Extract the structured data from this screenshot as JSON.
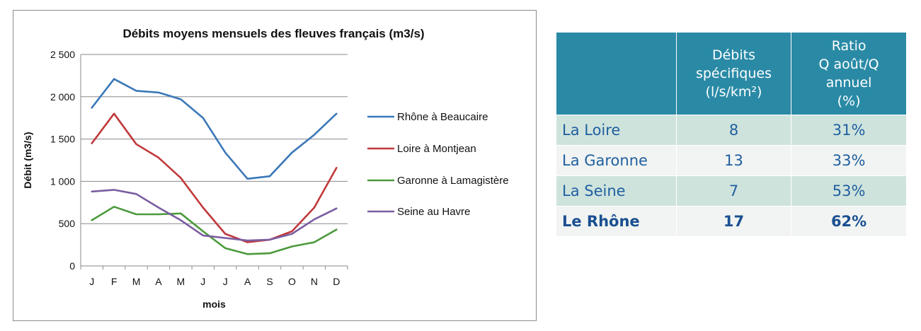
{
  "chart_data": {
    "type": "line",
    "title": "Débits moyens mensuels des fleuves français (m3/s)",
    "xlabel": "mois",
    "ylabel": "Débit (m3/s)",
    "categories": [
      "J",
      "F",
      "M",
      "A",
      "M",
      "J",
      "J",
      "A",
      "S",
      "O",
      "N",
      "D"
    ],
    "ylim": [
      0,
      2500
    ],
    "yticks": [
      0,
      500,
      1000,
      1500,
      2000,
      2500
    ],
    "ytick_labels": [
      "0",
      "500",
      "1 000",
      "1 500",
      "2 000",
      "2 500"
    ],
    "grid": true,
    "legend": "right",
    "series": [
      {
        "name": "Rhône à Beaucaire",
        "color": "#3a78b8",
        "values": [
          1870,
          2210,
          2070,
          2050,
          1970,
          1750,
          1340,
          1030,
          1060,
          1340,
          1550,
          1800
        ]
      },
      {
        "name": "Loire à Montjean",
        "color": "#c0393b",
        "values": [
          1450,
          1800,
          1440,
          1280,
          1040,
          690,
          380,
          280,
          310,
          410,
          690,
          1160
        ]
      },
      {
        "name": "Garonne à Lamagistère",
        "color": "#4c9a3c",
        "values": [
          540,
          700,
          610,
          610,
          620,
          410,
          210,
          140,
          150,
          230,
          280,
          430
        ]
      },
      {
        "name": "Seine au Havre",
        "color": "#7a5da1",
        "values": [
          880,
          900,
          850,
          690,
          540,
          360,
          330,
          300,
          310,
          380,
          550,
          680
        ]
      }
    ]
  },
  "table": {
    "headers": [
      "",
      "Débits spécifiques (l/s/km²)",
      "Ratio Q août/Q annuel (%)"
    ],
    "header_lines": [
      [],
      [
        "Débits",
        "spécifiques",
        "(l/s/km²)"
      ],
      [
        "Ratio",
        "Q août/Q annuel",
        "(%)"
      ]
    ],
    "rows": [
      {
        "name": "La Loire",
        "debit": "8",
        "ratio": "31%"
      },
      {
        "name": "La Garonne",
        "debit": "13",
        "ratio": "33%"
      },
      {
        "name": "La Seine",
        "debit": "7",
        "ratio": "53%"
      },
      {
        "name": "Le Rhône",
        "debit": "17",
        "ratio": "62%"
      }
    ]
  }
}
